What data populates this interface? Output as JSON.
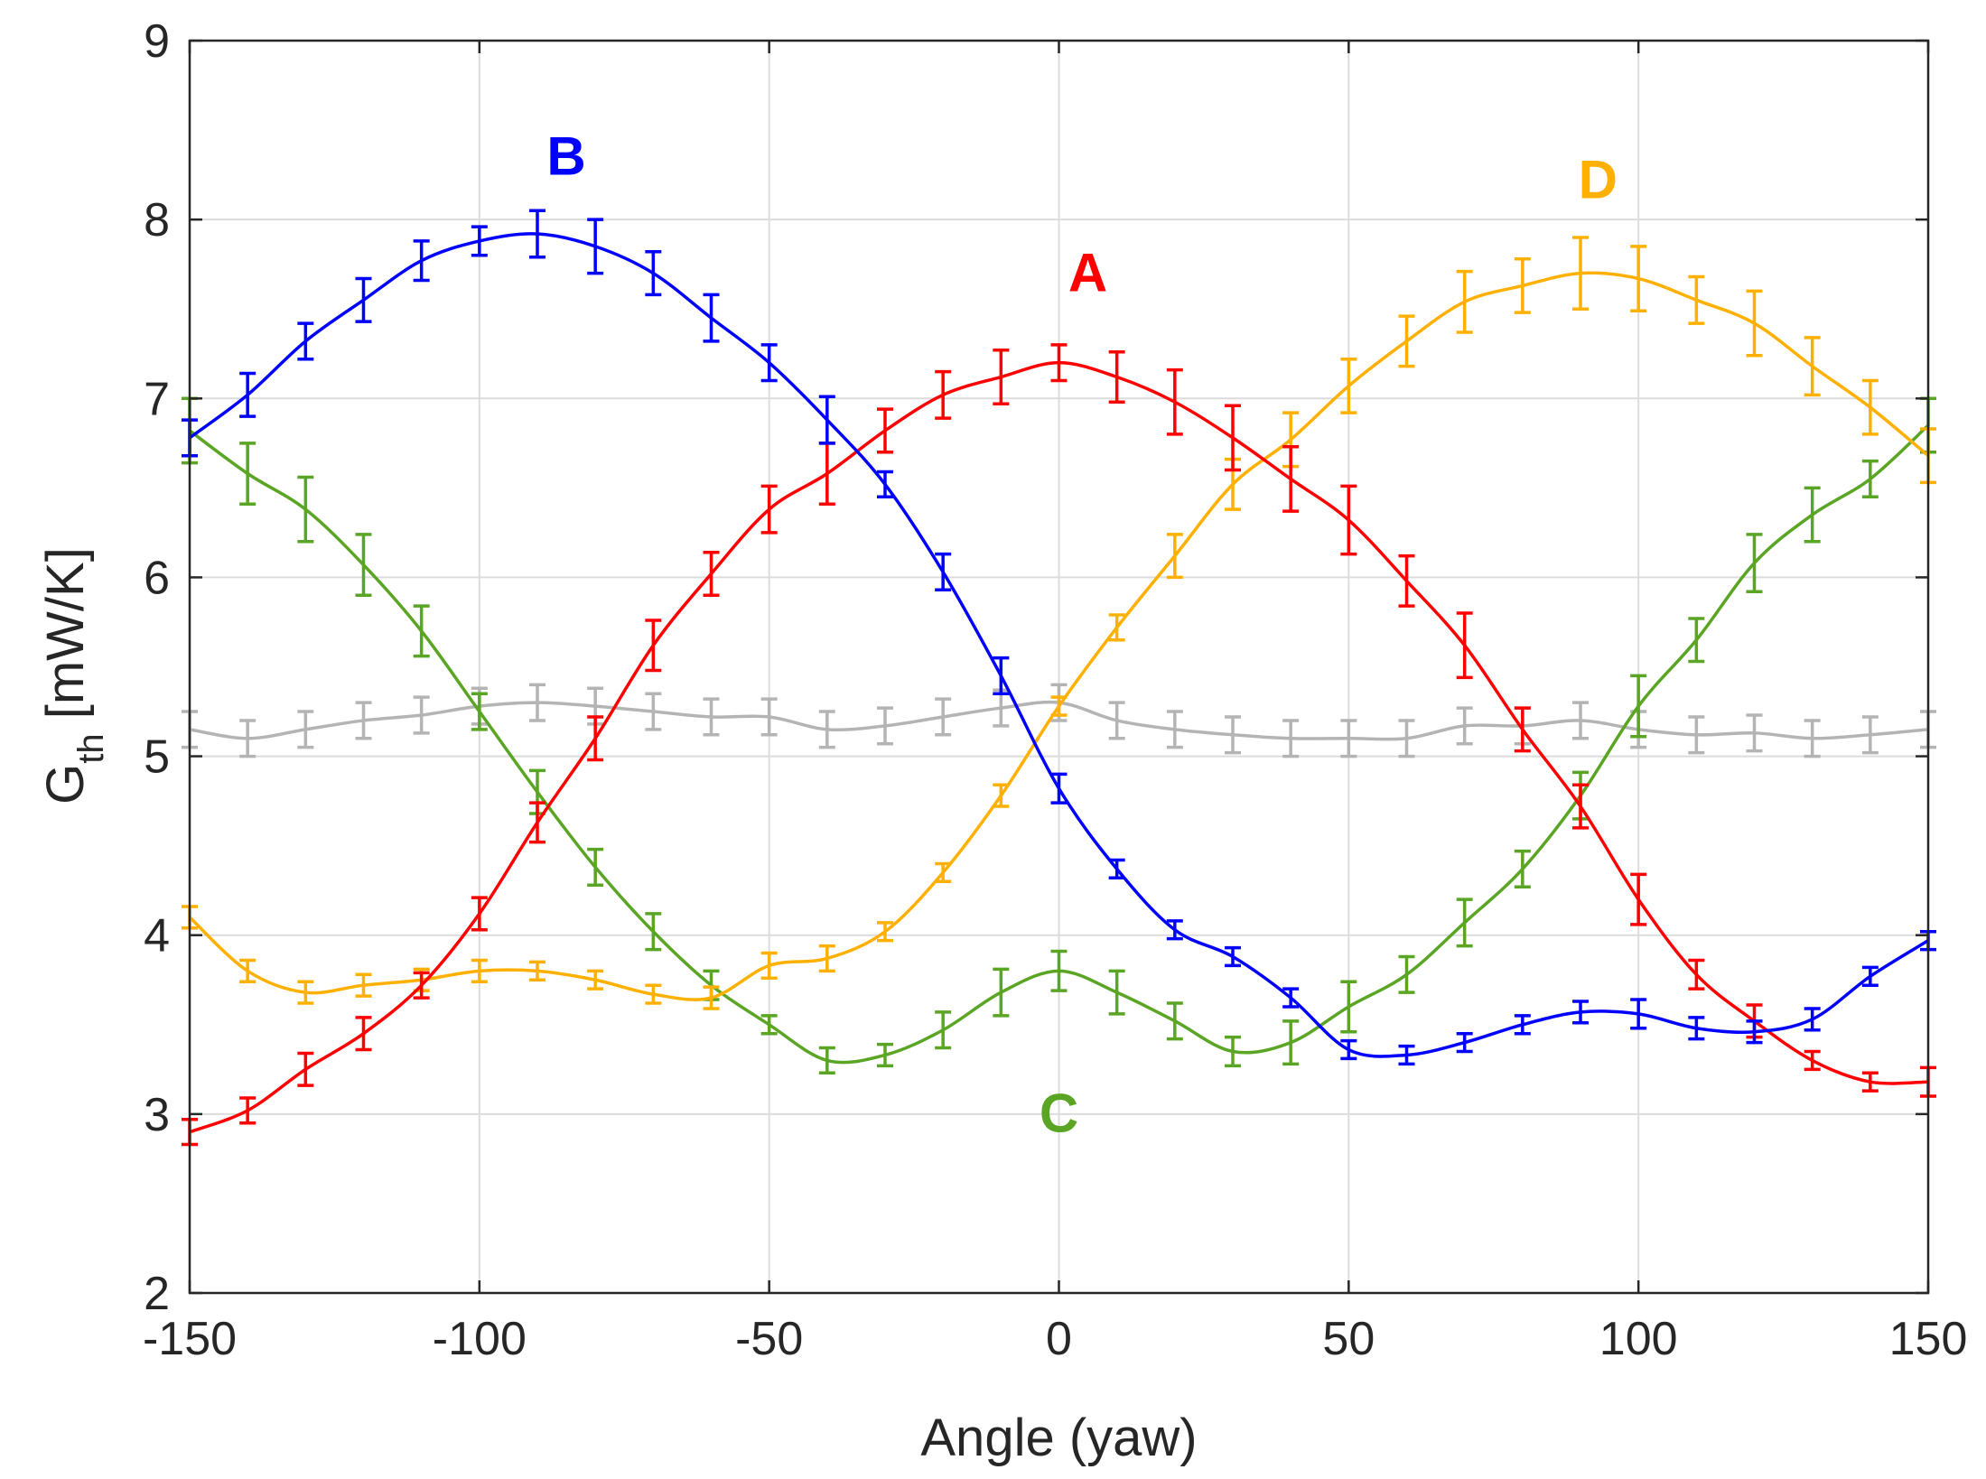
{
  "chart_data": {
    "type": "line",
    "title": "",
    "xlabel": "Angle (yaw)",
    "ylabel_main": "G",
    "ylabel_sub": "th",
    "ylabel_unit": " [mW/K]",
    "xlim": [
      -150,
      150
    ],
    "ylim": [
      2,
      9
    ],
    "xticks": [
      -150,
      -100,
      -50,
      0,
      50,
      100,
      150
    ],
    "yticks": [
      2,
      3,
      4,
      5,
      6,
      7,
      8,
      9
    ],
    "grid": true,
    "x": [
      -150,
      -140,
      -130,
      -120,
      -110,
      -100,
      -90,
      -80,
      -70,
      -60,
      -50,
      -40,
      -30,
      -20,
      -10,
      0,
      10,
      20,
      30,
      40,
      50,
      60,
      70,
      80,
      90,
      100,
      110,
      120,
      130,
      140,
      150
    ],
    "series": [
      {
        "name": "A",
        "color": "#ff0000",
        "values": [
          2.9,
          3.02,
          3.25,
          3.45,
          3.72,
          4.12,
          4.63,
          5.1,
          5.62,
          6.02,
          6.38,
          6.58,
          6.82,
          7.02,
          7.12,
          7.2,
          7.12,
          6.98,
          6.78,
          6.55,
          6.32,
          5.98,
          5.62,
          5.15,
          4.72,
          4.2,
          3.78,
          3.52,
          3.3,
          3.18,
          3.18
        ],
        "errors": [
          0.07,
          0.07,
          0.09,
          0.09,
          0.07,
          0.09,
          0.11,
          0.12,
          0.14,
          0.12,
          0.13,
          0.17,
          0.12,
          0.13,
          0.15,
          0.1,
          0.14,
          0.18,
          0.18,
          0.18,
          0.19,
          0.14,
          0.18,
          0.12,
          0.12,
          0.14,
          0.08,
          0.09,
          0.05,
          0.05,
          0.08
        ]
      },
      {
        "name": "B",
        "color": "#0000ff",
        "values": [
          6.78,
          7.02,
          7.32,
          7.55,
          7.77,
          7.88,
          7.92,
          7.85,
          7.7,
          7.45,
          7.2,
          6.88,
          6.52,
          6.03,
          5.45,
          4.82,
          4.37,
          4.03,
          3.88,
          3.65,
          3.36,
          3.33,
          3.4,
          3.5,
          3.57,
          3.56,
          3.48,
          3.46,
          3.53,
          3.77,
          3.97
        ]
      },
      {
        "name": "C",
        "color": "#5aa524",
        "values": [
          6.82,
          6.58,
          6.38,
          6.07,
          5.7,
          5.25,
          4.8,
          4.38,
          4.02,
          3.72,
          3.5,
          3.3,
          3.33,
          3.47,
          3.68,
          3.8,
          3.68,
          3.52,
          3.35,
          3.4,
          3.6,
          3.78,
          4.07,
          4.37,
          4.78,
          5.28,
          5.65,
          6.08,
          6.35,
          6.55,
          6.85
        ]
      },
      {
        "name": "D",
        "color": "#ffb000",
        "values": [
          4.1,
          3.8,
          3.68,
          3.72,
          3.75,
          3.8,
          3.8,
          3.75,
          3.67,
          3.65,
          3.83,
          3.87,
          4.02,
          4.35,
          4.78,
          5.28,
          5.72,
          6.12,
          6.52,
          6.77,
          7.07,
          7.32,
          7.54,
          7.63,
          7.7,
          7.67,
          7.55,
          7.42,
          7.18,
          6.95,
          6.68
        ]
      },
      {
        "name": "",
        "color": "#b4b4b4",
        "values": [
          5.15,
          5.1,
          5.15,
          5.2,
          5.23,
          5.28,
          5.3,
          5.28,
          5.25,
          5.22,
          5.22,
          5.15,
          5.17,
          5.22,
          5.27,
          5.3,
          5.2,
          5.15,
          5.12,
          5.1,
          5.1,
          5.1,
          5.17,
          5.17,
          5.2,
          5.15,
          5.12,
          5.13,
          5.1,
          5.12,
          5.15
        ]
      }
    ],
    "annotations": [
      {
        "text": "A",
        "x": 5,
        "y": 7.6,
        "color": "#ff0000"
      },
      {
        "text": "B",
        "x": -85,
        "y": 8.25,
        "color": "#0000ff"
      },
      {
        "text": "C",
        "x": 0,
        "y": 2.9,
        "color": "#5aa524"
      },
      {
        "text": "D",
        "x": 93,
        "y": 8.12,
        "color": "#ffb000"
      }
    ]
  }
}
